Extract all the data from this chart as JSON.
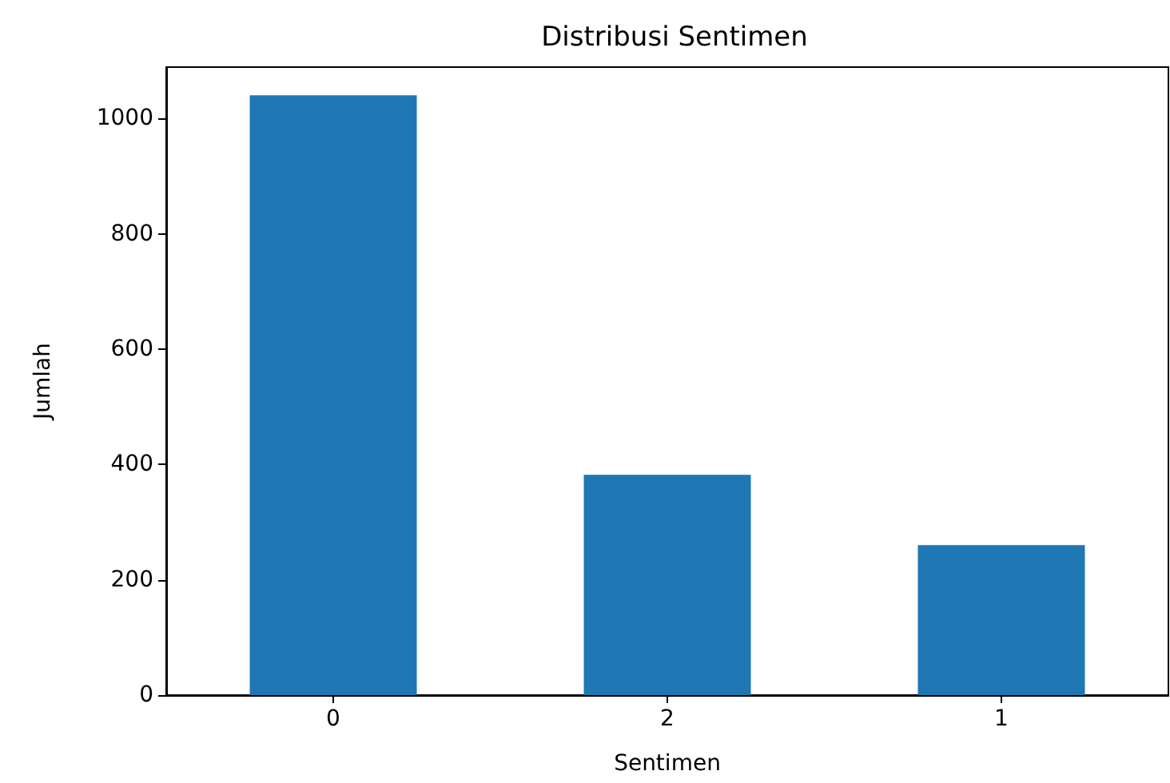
{
  "chart_data": {
    "type": "bar",
    "title": "Distribusi Sentimen",
    "xlabel": "Sentimen",
    "ylabel": "Jumlah",
    "categories": [
      "0",
      "2",
      "1"
    ],
    "values": [
      1040,
      382,
      260
    ],
    "color": "#1f77b4",
    "ylim": [
      0,
      1089
    ],
    "yticks": [
      0,
      200,
      400,
      600,
      800,
      1000
    ],
    "grid": false
  }
}
